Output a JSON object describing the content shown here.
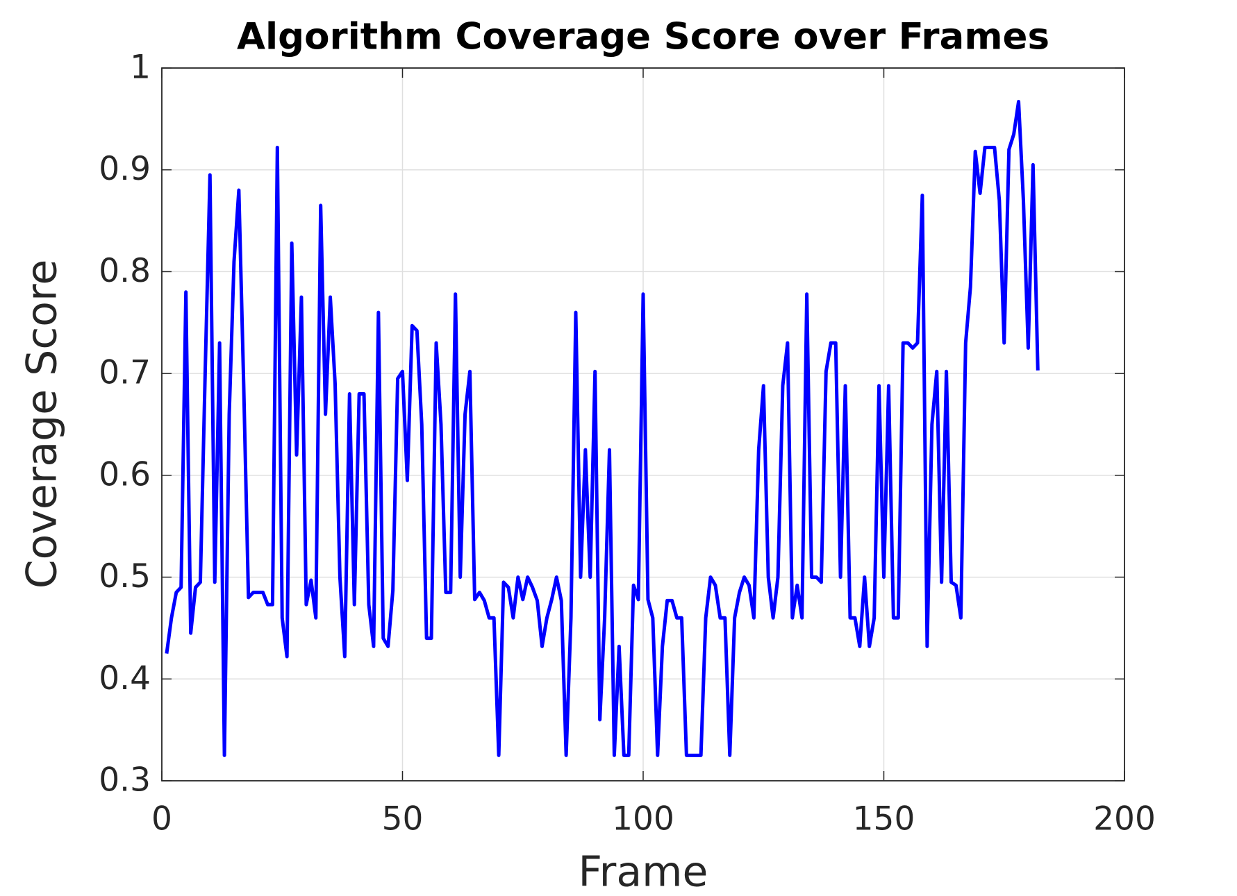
{
  "chart_data": {
    "type": "line",
    "title": "Algorithm Coverage Score over Frames",
    "x_label": "Frame",
    "y_label": "Coverage Score",
    "color": "#0000ff",
    "grid": true,
    "xlim": [
      0,
      200
    ],
    "xticks": [
      0,
      50,
      100,
      150,
      200
    ],
    "ylim": [
      0.3,
      1
    ],
    "yticks": [
      0.3,
      0.4,
      0.5,
      0.6,
      0.7,
      0.8,
      0.9,
      1
    ],
    "x": [
      1,
      2,
      3,
      4,
      5,
      6,
      7,
      8,
      9,
      10,
      11,
      12,
      13,
      14,
      15,
      16,
      17,
      18,
      19,
      20,
      21,
      22,
      23,
      24,
      25,
      26,
      27,
      28,
      29,
      30,
      31,
      32,
      33,
      34,
      35,
      36,
      37,
      38,
      39,
      40,
      41,
      42,
      43,
      44,
      45,
      46,
      47,
      48,
      49,
      50,
      51,
      52,
      53,
      54,
      55,
      56,
      57,
      58,
      59,
      60,
      61,
      62,
      63,
      64,
      65,
      66,
      67,
      68,
      69,
      70,
      71,
      72,
      73,
      74,
      75,
      76,
      77,
      78,
      79,
      80,
      81,
      82,
      83,
      84,
      85,
      86,
      87,
      88,
      89,
      90,
      91,
      92,
      93,
      94,
      95,
      96,
      97,
      98,
      99,
      100,
      101,
      102,
      103,
      104,
      105,
      106,
      107,
      108,
      109,
      110,
      111,
      112,
      113,
      114,
      115,
      116,
      117,
      118,
      119,
      120,
      121,
      122,
      123,
      124,
      125,
      126,
      127,
      128,
      129,
      130,
      131,
      132,
      133,
      134,
      135,
      136,
      137,
      138,
      139,
      140,
      141,
      142,
      143,
      144,
      145,
      146,
      147,
      148,
      149,
      150,
      151,
      152,
      153,
      154,
      155,
      156,
      157,
      158,
      159,
      160,
      161,
      162,
      163,
      164,
      165,
      166,
      167,
      168,
      169,
      170,
      171,
      172,
      173,
      174,
      175,
      176,
      177,
      178,
      179,
      180,
      181,
      182
    ],
    "values": [
      0.425,
      0.46,
      0.485,
      0.49,
      0.78,
      0.445,
      0.49,
      0.495,
      0.7,
      0.895,
      0.495,
      0.73,
      0.325,
      0.66,
      0.81,
      0.88,
      0.69,
      0.48,
      0.485,
      0.485,
      0.485,
      0.473,
      0.473,
      0.922,
      0.46,
      0.422,
      0.828,
      0.62,
      0.775,
      0.473,
      0.497,
      0.46,
      0.865,
      0.66,
      0.775,
      0.69,
      0.5,
      0.422,
      0.68,
      0.473,
      0.68,
      0.68,
      0.473,
      0.432,
      0.76,
      0.44,
      0.432,
      0.487,
      0.695,
      0.702,
      0.595,
      0.747,
      0.742,
      0.65,
      0.44,
      0.44,
      0.73,
      0.65,
      0.485,
      0.485,
      0.778,
      0.5,
      0.66,
      0.702,
      0.478,
      0.485,
      0.477,
      0.46,
      0.46,
      0.325,
      0.495,
      0.49,
      0.46,
      0.5,
      0.478,
      0.5,
      0.49,
      0.477,
      0.432,
      0.46,
      0.478,
      0.5,
      0.477,
      0.325,
      0.46,
      0.76,
      0.5,
      0.625,
      0.5,
      0.702,
      0.36,
      0.46,
      0.625,
      0.325,
      0.432,
      0.325,
      0.325,
      0.492,
      0.478,
      0.778,
      0.478,
      0.46,
      0.325,
      0.432,
      0.477,
      0.477,
      0.46,
      0.46,
      0.325,
      0.325,
      0.325,
      0.325,
      0.46,
      0.5,
      0.492,
      0.46,
      0.46,
      0.325,
      0.46,
      0.485,
      0.5,
      0.492,
      0.46,
      0.625,
      0.688,
      0.5,
      0.46,
      0.5,
      0.688,
      0.73,
      0.46,
      0.492,
      0.46,
      0.778,
      0.5,
      0.5,
      0.495,
      0.702,
      0.73,
      0.73,
      0.5,
      0.688,
      0.46,
      0.46,
      0.432,
      0.5,
      0.432,
      0.46,
      0.688,
      0.5,
      0.688,
      0.46,
      0.46,
      0.73,
      0.73,
      0.725,
      0.73,
      0.875,
      0.432,
      0.65,
      0.702,
      0.495,
      0.702,
      0.495,
      0.492,
      0.46,
      0.73,
      0.785,
      0.918,
      0.877,
      0.922,
      0.922,
      0.922,
      0.87,
      0.73,
      0.92,
      0.935,
      0.967,
      0.87,
      0.725,
      0.905,
      0.703
    ]
  }
}
